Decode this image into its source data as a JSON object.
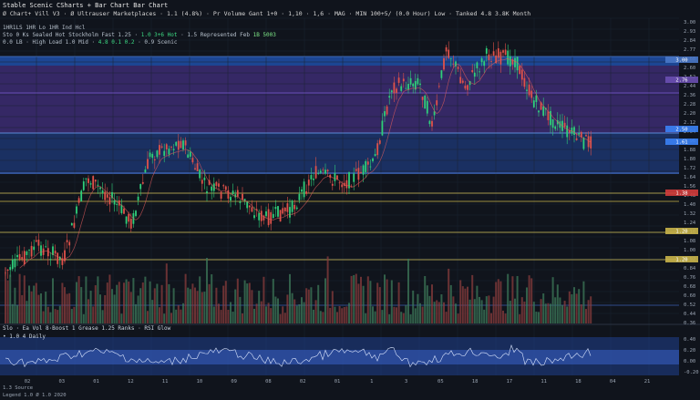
{
  "header": {
    "title": "Stable Scenic CSharts + Bar Chart Bar Chart",
    "subtitle": "Ø Chart+ Vill V3 · Ø Ultrauser Marketplaces · 1.1 (4.8%) · Pr Volume Gant 1+0 · 1,10 · 1,6 · MAG · MIN 100+5/ (0.0 Hour) Low · Tanked 4.8 3.8K Month"
  },
  "info": {
    "line1": "1HR1LS 1HR Lo 1HR Ind Hcl",
    "line2_prefix": "Sto 0 Ks Sealed Hot Stockholm Fast 1.25 ·",
    "line2_hl": "1.0 3+6 Hot",
    "line2_mid": "· 1.5 Represented Feb",
    "line2_hl2": "1B 5003",
    "line3_prefix": "0.0 LB · High Load 1.0 Mid ·",
    "line3_hl": "4.8 0.1 0.2",
    "line3_suffix": "· 0.9 Scenic"
  },
  "indicator": {
    "label": "Slo · Ea Vol 8·Boost 1 Grease 1.25 Ranks · RSI Glow",
    "sublabel": "• 1.0 4 Daily"
  },
  "footer": {
    "line1": "1.3 Source",
    "line2": "Legend 1.0 Ø 1.0 2020"
  },
  "axis": {
    "right_ticks": [
      "3.00",
      "2.93",
      "2.84",
      "2.77",
      "2.68",
      "2.60",
      "2.52",
      "2.44",
      "2.36",
      "2.28",
      "2.20",
      "2.12",
      "2.04",
      "1.96",
      "1.88",
      "1.80",
      "1.72",
      "1.64",
      "1.56",
      "1.48",
      "1.40",
      "1.32",
      "1.24",
      "1.16",
      "1.08",
      "1.00",
      "0.92",
      "0.84",
      "0.76",
      "0.68",
      "0.60",
      "0.52",
      "0.44",
      "0.36"
    ],
    "x_ticks": [
      "02",
      "03",
      "01",
      "12",
      "11",
      "10",
      "09",
      "08",
      "02",
      "01",
      "1",
      "3",
      "05",
      "18",
      "17",
      "11",
      "18",
      "04",
      "21"
    ],
    "price_tags": [
      {
        "label": "3.00",
        "color": "#4a78c9"
      },
      {
        "label": "2.76",
        "color": "#6a4fb1"
      },
      {
        "label": "2.50",
        "color": "#3b82f6"
      },
      {
        "label": "1.61",
        "color": "#3b82f6"
      },
      {
        "label": "1.38",
        "color": "#d13b3b"
      },
      {
        "label": "1.20",
        "color": "#c9b44a"
      },
      {
        "label": "1.20",
        "color": "#c9b44a"
      }
    ],
    "indicator_ticks": [
      "0.40",
      "0.20",
      "0.00",
      "-0.20"
    ]
  },
  "colors": {
    "up": "#2fcf7a",
    "down": "#e0524a",
    "band_purple": "#3a2a6e",
    "band_blue": "#1e3a7a",
    "grid": "#1b2230"
  }
}
